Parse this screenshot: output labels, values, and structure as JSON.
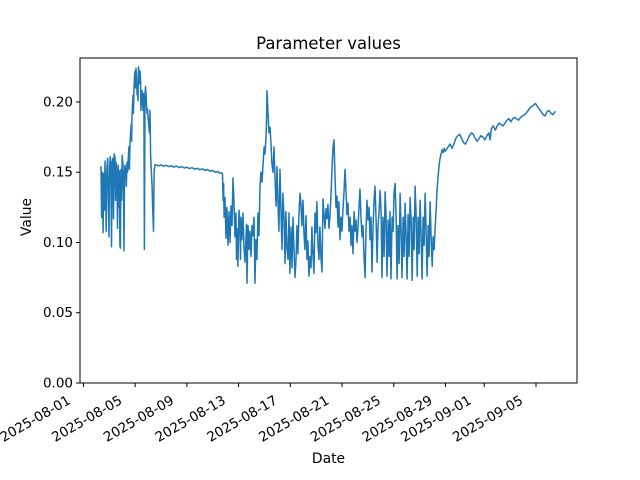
{
  "window": {
    "background": "#ffffff"
  },
  "chart_data": {
    "type": "line",
    "title": "Parameter values",
    "xlabel": "Date",
    "ylabel": "Value",
    "line_color": "#1f77b4",
    "axis_color": "#000000",
    "grid": false,
    "legend": false,
    "x_unit": "days since 2025-08-01",
    "xlim": [
      -0.263,
      38.17
    ],
    "ylim": [
      0,
      0.2313
    ],
    "x_tick_rotation_deg": 30,
    "x_ticks": [
      {
        "day": 0,
        "label": "2025-08-01"
      },
      {
        "day": 4,
        "label": "2025-08-05"
      },
      {
        "day": 8,
        "label": "2025-08-09"
      },
      {
        "day": 12,
        "label": "2025-08-13"
      },
      {
        "day": 16,
        "label": "2025-08-17"
      },
      {
        "day": 20,
        "label": "2025-08-21"
      },
      {
        "day": 24,
        "label": "2025-08-25"
      },
      {
        "day": 28,
        "label": "2025-08-29"
      },
      {
        "day": 31,
        "label": "2025-09-01"
      },
      {
        "day": 35,
        "label": "2025-09-05"
      }
    ],
    "y_ticks": [
      {
        "value": 0.0,
        "label": "0.00"
      },
      {
        "value": 0.05,
        "label": "0.05"
      },
      {
        "value": 0.1,
        "label": "0.10"
      },
      {
        "value": 0.15,
        "label": "0.15"
      },
      {
        "value": 0.2,
        "label": "0.20"
      }
    ],
    "points": [
      [
        1.36,
        0.154
      ],
      [
        1.41,
        0.118
      ],
      [
        1.46,
        0.15
      ],
      [
        1.52,
        0.107
      ],
      [
        1.57,
        0.149
      ],
      [
        1.62,
        0.123
      ],
      [
        1.67,
        0.158
      ],
      [
        1.72,
        0.139
      ],
      [
        1.76,
        0.108
      ],
      [
        1.82,
        0.153
      ],
      [
        1.88,
        0.16
      ],
      [
        1.93,
        0.128
      ],
      [
        1.98,
        0.104
      ],
      [
        2.03,
        0.156
      ],
      [
        2.08,
        0.161
      ],
      [
        2.13,
        0.157
      ],
      [
        2.17,
        0.097
      ],
      [
        2.22,
        0.155
      ],
      [
        2.28,
        0.16
      ],
      [
        2.33,
        0.117
      ],
      [
        2.38,
        0.163
      ],
      [
        2.44,
        0.16
      ],
      [
        2.49,
        0.13
      ],
      [
        2.53,
        0.157
      ],
      [
        2.59,
        0.149
      ],
      [
        2.64,
        0.11
      ],
      [
        2.69,
        0.155
      ],
      [
        2.73,
        0.125
      ],
      [
        2.78,
        0.151
      ],
      [
        2.82,
        0.098
      ],
      [
        2.86,
        0.096
      ],
      [
        2.91,
        0.152
      ],
      [
        2.96,
        0.13
      ],
      [
        3.0,
        0.162
      ],
      [
        3.06,
        0.155
      ],
      [
        3.11,
        0.132
      ],
      [
        3.14,
        0.094
      ],
      [
        3.18,
        0.149
      ],
      [
        3.22,
        0.155
      ],
      [
        3.28,
        0.15
      ],
      [
        3.32,
        0.14
      ],
      [
        3.37,
        0.157
      ],
      [
        3.42,
        0.15
      ],
      [
        3.47,
        0.16
      ],
      [
        3.52,
        0.168
      ],
      [
        3.56,
        0.152
      ],
      [
        3.6,
        0.17
      ],
      [
        3.65,
        0.178
      ],
      [
        3.7,
        0.184
      ],
      [
        3.73,
        0.172
      ],
      [
        3.76,
        0.19
      ],
      [
        3.8,
        0.198
      ],
      [
        3.84,
        0.205
      ],
      [
        3.87,
        0.192
      ],
      [
        3.91,
        0.21
      ],
      [
        3.95,
        0.218
      ],
      [
        3.99,
        0.222
      ],
      [
        4.03,
        0.21
      ],
      [
        4.07,
        0.224
      ],
      [
        4.11,
        0.218
      ],
      [
        4.15,
        0.205
      ],
      [
        4.18,
        0.212
      ],
      [
        4.22,
        0.201
      ],
      [
        4.26,
        0.225
      ],
      [
        4.3,
        0.221
      ],
      [
        4.34,
        0.213
      ],
      [
        4.38,
        0.222
      ],
      [
        4.42,
        0.215
      ],
      [
        4.45,
        0.194
      ],
      [
        4.49,
        0.204
      ],
      [
        4.53,
        0.208
      ],
      [
        4.57,
        0.201
      ],
      [
        4.61,
        0.194
      ],
      [
        4.65,
        0.206
      ],
      [
        4.68,
        0.199
      ],
      [
        4.72,
        0.095
      ],
      [
        4.76,
        0.205
      ],
      [
        4.8,
        0.211
      ],
      [
        4.84,
        0.206
      ],
      [
        4.88,
        0.198
      ],
      [
        4.92,
        0.192
      ],
      [
        4.96,
        0.195
      ],
      [
        5.0,
        0.189
      ],
      [
        5.05,
        0.184
      ],
      [
        5.1,
        0.178
      ],
      [
        5.15,
        0.194
      ],
      [
        5.2,
        0.162
      ],
      [
        5.26,
        0.15
      ],
      [
        5.31,
        0.14
      ],
      [
        5.37,
        0.122
      ],
      [
        5.42,
        0.108
      ],
      [
        5.47,
        0.15
      ],
      [
        5.51,
        0.154
      ],
      [
        5.55,
        0.1555
      ],
      [
        5.8,
        0.1545
      ],
      [
        6.0,
        0.1552
      ],
      [
        6.2,
        0.1543
      ],
      [
        6.4,
        0.1549
      ],
      [
        6.6,
        0.154
      ],
      [
        6.8,
        0.1546
      ],
      [
        7.0,
        0.1537
      ],
      [
        7.2,
        0.1543
      ],
      [
        7.4,
        0.1534
      ],
      [
        7.6,
        0.154
      ],
      [
        7.8,
        0.153
      ],
      [
        8.0,
        0.1536
      ],
      [
        8.2,
        0.1526
      ],
      [
        8.4,
        0.1532
      ],
      [
        8.6,
        0.1522
      ],
      [
        8.8,
        0.1528
      ],
      [
        9.0,
        0.1518
      ],
      [
        9.2,
        0.1524
      ],
      [
        9.4,
        0.1513
      ],
      [
        9.6,
        0.1519
      ],
      [
        9.8,
        0.1508
      ],
      [
        10.0,
        0.1512
      ],
      [
        10.2,
        0.15
      ],
      [
        10.4,
        0.1505
      ],
      [
        10.55,
        0.1493
      ],
      [
        10.7,
        0.1496
      ],
      [
        10.76,
        0.1487
      ],
      [
        10.8,
        0.13
      ],
      [
        10.84,
        0.142
      ],
      [
        10.88,
        0.118
      ],
      [
        10.95,
        0.132
      ],
      [
        11.03,
        0.103
      ],
      [
        11.1,
        0.125
      ],
      [
        11.18,
        0.098
      ],
      [
        11.26,
        0.122
      ],
      [
        11.34,
        0.1
      ],
      [
        11.41,
        0.126
      ],
      [
        11.49,
        0.112
      ],
      [
        11.57,
        0.146
      ],
      [
        11.64,
        0.13
      ],
      [
        11.72,
        0.104
      ],
      [
        11.8,
        0.121
      ],
      [
        11.84,
        0.088
      ],
      [
        11.88,
        0.11
      ],
      [
        11.95,
        0.083
      ],
      [
        12.03,
        0.123
      ],
      [
        12.11,
        0.11
      ],
      [
        12.15,
        0.088
      ],
      [
        12.19,
        0.118
      ],
      [
        12.26,
        0.102
      ],
      [
        12.34,
        0.121
      ],
      [
        12.42,
        0.096
      ],
      [
        12.5,
        0.086
      ],
      [
        12.57,
        0.104
      ],
      [
        12.61,
        0.113
      ],
      [
        12.65,
        0.071
      ],
      [
        12.73,
        0.112
      ],
      [
        12.81,
        0.095
      ],
      [
        12.88,
        0.108
      ],
      [
        12.96,
        0.09
      ],
      [
        13.04,
        0.112
      ],
      [
        13.11,
        0.105
      ],
      [
        13.19,
        0.118
      ],
      [
        13.27,
        0.071
      ],
      [
        13.34,
        0.102
      ],
      [
        13.42,
        0.088
      ],
      [
        13.5,
        0.121
      ],
      [
        13.58,
        0.105
      ],
      [
        13.66,
        0.14
      ],
      [
        13.73,
        0.15
      ],
      [
        13.81,
        0.143
      ],
      [
        13.89,
        0.155
      ],
      [
        13.97,
        0.168
      ],
      [
        14.04,
        0.163
      ],
      [
        14.12,
        0.175
      ],
      [
        14.16,
        0.186
      ],
      [
        14.2,
        0.208
      ],
      [
        14.27,
        0.194
      ],
      [
        14.35,
        0.178
      ],
      [
        14.43,
        0.182
      ],
      [
        14.51,
        0.17
      ],
      [
        14.58,
        0.156
      ],
      [
        14.66,
        0.15
      ],
      [
        14.74,
        0.168
      ],
      [
        14.82,
        0.146
      ],
      [
        14.9,
        0.126
      ],
      [
        14.97,
        0.154
      ],
      [
        15.05,
        0.128
      ],
      [
        15.12,
        0.108
      ],
      [
        15.2,
        0.152
      ],
      [
        15.28,
        0.122
      ],
      [
        15.36,
        0.095
      ],
      [
        15.43,
        0.135
      ],
      [
        15.51,
        0.118
      ],
      [
        15.59,
        0.085
      ],
      [
        15.66,
        0.122
      ],
      [
        15.74,
        0.096
      ],
      [
        15.82,
        0.088
      ],
      [
        15.9,
        0.121
      ],
      [
        15.97,
        0.078
      ],
      [
        16.05,
        0.111
      ],
      [
        16.13,
        0.082
      ],
      [
        16.21,
        0.118
      ],
      [
        16.28,
        0.097
      ],
      [
        16.36,
        0.075
      ],
      [
        16.44,
        0.088
      ],
      [
        16.52,
        0.112
      ],
      [
        16.59,
        0.092
      ],
      [
        16.67,
        0.121
      ],
      [
        16.75,
        0.135
      ],
      [
        16.82,
        0.128
      ],
      [
        16.9,
        0.112
      ],
      [
        16.98,
        0.13
      ],
      [
        17.05,
        0.108
      ],
      [
        17.13,
        0.095
      ],
      [
        17.21,
        0.119
      ],
      [
        17.29,
        0.088
      ],
      [
        17.36,
        0.101
      ],
      [
        17.44,
        0.076
      ],
      [
        17.52,
        0.09
      ],
      [
        17.6,
        0.082
      ],
      [
        17.67,
        0.111
      ],
      [
        17.75,
        0.092
      ],
      [
        17.83,
        0.078
      ],
      [
        17.91,
        0.121
      ],
      [
        17.98,
        0.107
      ],
      [
        18.06,
        0.129
      ],
      [
        18.14,
        0.098
      ],
      [
        18.22,
        0.088
      ],
      [
        18.29,
        0.111
      ],
      [
        18.37,
        0.089
      ],
      [
        18.45,
        0.079
      ],
      [
        18.53,
        0.131
      ],
      [
        18.6,
        0.121
      ],
      [
        18.68,
        0.11
      ],
      [
        18.76,
        0.124
      ],
      [
        18.84,
        0.117
      ],
      [
        18.91,
        0.127
      ],
      [
        18.99,
        0.11
      ],
      [
        19.07,
        0.119
      ],
      [
        19.15,
        0.134
      ],
      [
        19.22,
        0.15
      ],
      [
        19.3,
        0.168
      ],
      [
        19.38,
        0.173
      ],
      [
        19.45,
        0.15
      ],
      [
        19.53,
        0.125
      ],
      [
        19.61,
        0.133
      ],
      [
        19.69,
        0.111
      ],
      [
        19.76,
        0.129
      ],
      [
        19.84,
        0.102
      ],
      [
        19.92,
        0.118
      ],
      [
        20.0,
        0.108
      ],
      [
        20.07,
        0.123
      ],
      [
        20.15,
        0.136
      ],
      [
        20.23,
        0.152
      ],
      [
        20.31,
        0.137
      ],
      [
        20.38,
        0.12
      ],
      [
        20.46,
        0.128
      ],
      [
        20.54,
        0.108
      ],
      [
        20.62,
        0.118
      ],
      [
        20.69,
        0.098
      ],
      [
        20.77,
        0.112
      ],
      [
        20.85,
        0.092
      ],
      [
        20.93,
        0.122
      ],
      [
        21.0,
        0.108
      ],
      [
        21.08,
        0.116
      ],
      [
        21.16,
        0.1
      ],
      [
        21.24,
        0.112
      ],
      [
        21.31,
        0.125
      ],
      [
        21.39,
        0.138
      ],
      [
        21.47,
        0.118
      ],
      [
        21.55,
        0.104
      ],
      [
        21.62,
        0.112
      ],
      [
        21.7,
        0.09
      ],
      [
        21.78,
        0.075
      ],
      [
        21.85,
        0.108
      ],
      [
        21.93,
        0.13
      ],
      [
        22.01,
        0.116
      ],
      [
        22.09,
        0.125
      ],
      [
        22.16,
        0.102
      ],
      [
        22.24,
        0.118
      ],
      [
        22.32,
        0.079
      ],
      [
        22.4,
        0.112
      ],
      [
        22.47,
        0.129
      ],
      [
        22.55,
        0.14
      ],
      [
        22.63,
        0.118
      ],
      [
        22.71,
        0.086
      ],
      [
        22.78,
        0.112
      ],
      [
        22.86,
        0.121
      ],
      [
        22.94,
        0.137
      ],
      [
        23.02,
        0.122
      ],
      [
        23.09,
        0.075
      ],
      [
        23.17,
        0.118
      ],
      [
        23.25,
        0.09
      ],
      [
        23.33,
        0.136
      ],
      [
        23.4,
        0.12
      ],
      [
        23.48,
        0.076
      ],
      [
        23.56,
        0.116
      ],
      [
        23.64,
        0.09
      ],
      [
        23.71,
        0.122
      ],
      [
        23.79,
        0.074
      ],
      [
        23.87,
        0.118
      ],
      [
        23.95,
        0.108
      ],
      [
        24.02,
        0.135
      ],
      [
        24.1,
        0.142
      ],
      [
        24.18,
        0.118
      ],
      [
        24.26,
        0.074
      ],
      [
        24.33,
        0.112
      ],
      [
        24.41,
        0.085
      ],
      [
        24.49,
        0.135
      ],
      [
        24.57,
        0.108
      ],
      [
        24.64,
        0.075
      ],
      [
        24.72,
        0.118
      ],
      [
        24.8,
        0.09
      ],
      [
        24.88,
        0.128
      ],
      [
        24.95,
        0.108
      ],
      [
        25.03,
        0.074
      ],
      [
        25.11,
        0.12
      ],
      [
        25.19,
        0.09
      ],
      [
        25.26,
        0.132
      ],
      [
        25.34,
        0.116
      ],
      [
        25.42,
        0.073
      ],
      [
        25.5,
        0.118
      ],
      [
        25.57,
        0.095
      ],
      [
        25.65,
        0.14
      ],
      [
        25.73,
        0.12
      ],
      [
        25.81,
        0.076
      ],
      [
        25.88,
        0.118
      ],
      [
        25.96,
        0.092
      ],
      [
        26.04,
        0.13
      ],
      [
        26.12,
        0.102
      ],
      [
        26.19,
        0.074
      ],
      [
        26.27,
        0.118
      ],
      [
        26.35,
        0.098
      ],
      [
        26.42,
        0.135
      ],
      [
        26.5,
        0.11
      ],
      [
        26.58,
        0.076
      ],
      [
        26.66,
        0.112
      ],
      [
        26.73,
        0.09
      ],
      [
        26.81,
        0.129
      ],
      [
        26.89,
        0.104
      ],
      [
        26.97,
        0.083
      ],
      [
        27.04,
        0.104
      ],
      [
        27.12,
        0.095
      ],
      [
        27.2,
        0.11
      ],
      [
        27.28,
        0.124
      ],
      [
        27.35,
        0.138
      ],
      [
        27.43,
        0.147
      ],
      [
        27.51,
        0.155
      ],
      [
        27.58,
        0.16
      ],
      [
        27.66,
        0.163
      ],
      [
        27.74,
        0.166
      ],
      [
        27.82,
        0.164
      ],
      [
        27.89,
        0.167
      ],
      [
        27.97,
        0.165
      ],
      [
        28.05,
        0.166
      ],
      [
        28.2,
        0.168
      ],
      [
        28.35,
        0.17
      ],
      [
        28.5,
        0.167
      ],
      [
        28.65,
        0.17
      ],
      [
        28.8,
        0.174
      ],
      [
        28.95,
        0.176
      ],
      [
        29.1,
        0.177
      ],
      [
        29.25,
        0.174
      ],
      [
        29.4,
        0.171
      ],
      [
        29.55,
        0.17
      ],
      [
        29.7,
        0.173
      ],
      [
        29.85,
        0.176
      ],
      [
        30.0,
        0.178
      ],
      [
        30.15,
        0.177
      ],
      [
        30.3,
        0.174
      ],
      [
        30.45,
        0.172
      ],
      [
        30.6,
        0.174
      ],
      [
        30.75,
        0.176
      ],
      [
        30.9,
        0.175
      ],
      [
        31.05,
        0.173
      ],
      [
        31.2,
        0.176
      ],
      [
        31.35,
        0.178
      ],
      [
        31.45,
        0.173
      ],
      [
        31.55,
        0.181
      ],
      [
        31.7,
        0.183
      ],
      [
        31.85,
        0.18
      ],
      [
        32.0,
        0.183
      ],
      [
        32.15,
        0.185
      ],
      [
        32.3,
        0.184
      ],
      [
        32.45,
        0.183
      ],
      [
        32.6,
        0.185
      ],
      [
        32.75,
        0.187
      ],
      [
        32.9,
        0.188
      ],
      [
        33.05,
        0.186
      ],
      [
        33.2,
        0.188
      ],
      [
        33.35,
        0.189
      ],
      [
        33.5,
        0.188
      ],
      [
        33.65,
        0.187
      ],
      [
        33.8,
        0.189
      ],
      [
        33.95,
        0.19
      ],
      [
        34.1,
        0.191
      ],
      [
        34.25,
        0.192
      ],
      [
        34.4,
        0.194
      ],
      [
        34.55,
        0.196
      ],
      [
        34.7,
        0.197
      ],
      [
        34.85,
        0.198
      ],
      [
        34.95,
        0.199
      ],
      [
        35.1,
        0.197
      ],
      [
        35.25,
        0.195
      ],
      [
        35.4,
        0.193
      ],
      [
        35.55,
        0.191
      ],
      [
        35.7,
        0.19
      ],
      [
        35.85,
        0.193
      ],
      [
        36.0,
        0.194
      ],
      [
        36.15,
        0.192
      ],
      [
        36.3,
        0.191
      ],
      [
        36.47,
        0.193
      ]
    ]
  }
}
